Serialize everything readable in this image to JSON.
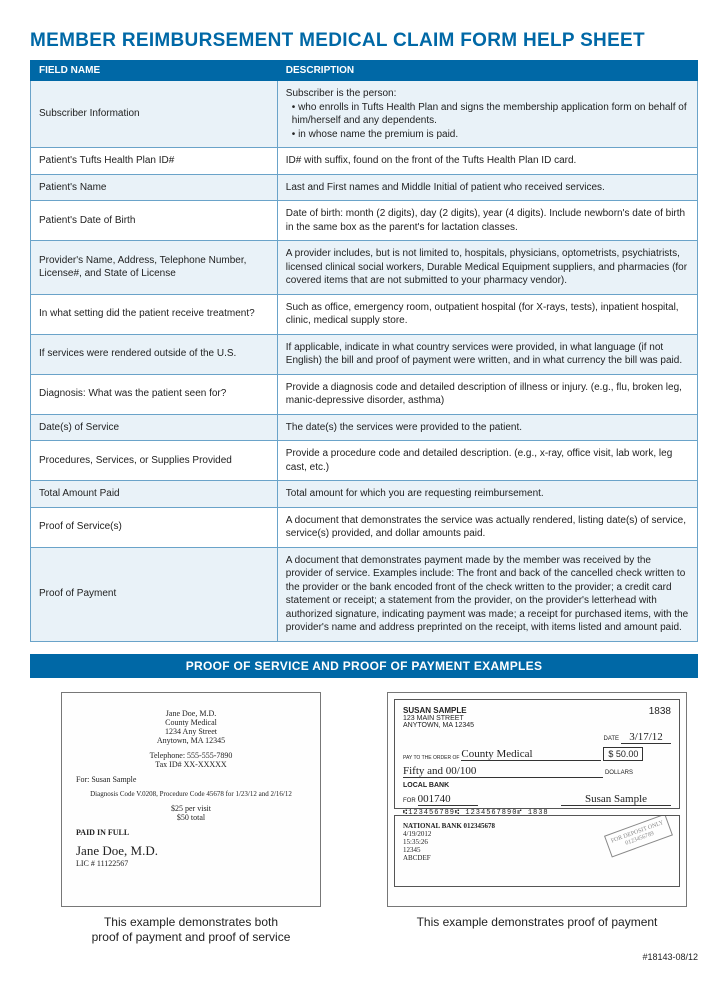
{
  "title": "MEMBER REIMBURSEMENT MEDICAL CLAIM FORM HELP SHEET",
  "table": {
    "header_field": "FIELD NAME",
    "header_desc": "DESCRIPTION",
    "rows": [
      {
        "field": "Subscriber Information",
        "desc_lead": "Subscriber is the person:",
        "bullets": [
          "who enrolls in Tufts Health Plan and signs the membership application form on behalf of him/herself and any dependents.",
          "in whose name the premium is paid."
        ]
      },
      {
        "field": "Patient's Tufts Health Plan ID#",
        "desc": "ID# with suffix, found on the front of the Tufts Health Plan ID card."
      },
      {
        "field": "Patient's Name",
        "desc": "Last and First names and Middle Initial of patient who received services."
      },
      {
        "field": "Patient's Date of Birth",
        "desc": "Date of birth: month (2 digits), day (2 digits), year (4 digits). Include newborn's date of birth in the same box as the parent's for lactation classes."
      },
      {
        "field": "Provider's Name, Address, Telephone Number, License#, and State of License",
        "desc": "A provider includes, but is not limited to, hospitals, physicians, optometrists, psychiatrists, licensed clinical social workers, Durable Medical Equipment suppliers, and pharmacies (for covered items that are not submitted to your pharmacy vendor)."
      },
      {
        "field": "In what setting did the patient receive treatment?",
        "desc": "Such as office, emergency room, outpatient hospital (for X-rays, tests), inpatient hospital, clinic, medical supply store."
      },
      {
        "field": "If services were rendered outside of the U.S.",
        "desc": "If applicable, indicate in what country services were provided, in what language (if not English) the bill and proof of payment were written, and in what currency the bill was paid."
      },
      {
        "field": "Diagnosis: What was the patient seen for?",
        "desc": "Provide a diagnosis code and detailed description of illness or injury. (e.g., flu, broken leg, manic-depressive disorder, asthma)"
      },
      {
        "field": "Date(s) of Service",
        "desc": "The date(s) the services were provided to the patient."
      },
      {
        "field": "Procedures, Services, or Supplies Provided",
        "desc": "Provide a procedure code and detailed description. (e.g., x-ray, office visit, lab work, leg cast, etc.)"
      },
      {
        "field": "Total Amount Paid",
        "desc": "Total amount for which you are requesting reimbursement."
      },
      {
        "field": "Proof of Service(s)",
        "desc": "A document that demonstrates the service was actually rendered, listing date(s) of service, service(s) provided, and dollar amounts paid."
      },
      {
        "field": "Proof of Payment",
        "desc": "A document that demonstrates payment made by the member was received by the provider of service. Examples include: The front and back of the cancelled check written to the provider or the bank encoded front of the check written to the provider; a credit card statement or receipt; a statement from the provider, on the provider's letterhead with authorized signature, indicating payment was made; a receipt for purchased items, with the provider's name and address preprinted on the receipt, with items listed and amount paid."
      }
    ]
  },
  "section_banner": "PROOF OF SERVICE AND PROOF OF PAYMENT EXAMPLES",
  "receipt": {
    "provider_name": "Jane Doe, M.D.",
    "provider_org": "County Medical",
    "provider_addr1": "1234 Any Street",
    "provider_addr2": "Anytown, MA 12345",
    "phone": "Telephone: 555-555-7890",
    "taxid": "Tax ID# XX-XXXXX",
    "for_line": "For: Susan Sample",
    "dx_line": "Diagnosis Code V.0208, Procedure Code 45678 for 1/23/12 and 2/16/12",
    "per_visit": "$25 per visit",
    "total": "$50 total",
    "paid": "PAID IN FULL",
    "signature": "Jane Doe, M.D.",
    "license": "LIC # 11122567"
  },
  "check": {
    "payer_name": "SUSAN SAMPLE",
    "payer_addr1": "123 MAIN STREET",
    "payer_addr2": "ANYTOWN, MA 12345",
    "check_no": "1838",
    "date_label": "DATE",
    "date_value": "3/17/12",
    "payto_label": "PAY TO THE ORDER OF",
    "payto_value": "County Medical",
    "amount_num": "$ 50.00",
    "amount_words": "Fifty and 00/100",
    "dollars_label": "DOLLARS",
    "bank_name": "LOCAL BANK",
    "memo_label": "FOR",
    "memo_value": "001740",
    "signature": "Susan Sample",
    "micr": "⑆123456789⑆ 1234567890⑈ 1838",
    "back_bank": "NATIONAL BANK 012345678",
    "back_date": "4/19/2012",
    "back_time": "15:35:26",
    "back_zip": "12345",
    "back_code": "ABCDEF",
    "stamp1": "FOR DEPOSIT ONLY",
    "stamp2": "0123456789"
  },
  "captions": {
    "left": "This example demonstrates both\nproof of payment and proof of service",
    "right": "This example demonstrates proof of payment"
  },
  "footer_code": "#18143-08/12",
  "colors": {
    "brand": "#0068a6",
    "row_tint": "#e9f2f8",
    "border": "#6aa3c9"
  }
}
